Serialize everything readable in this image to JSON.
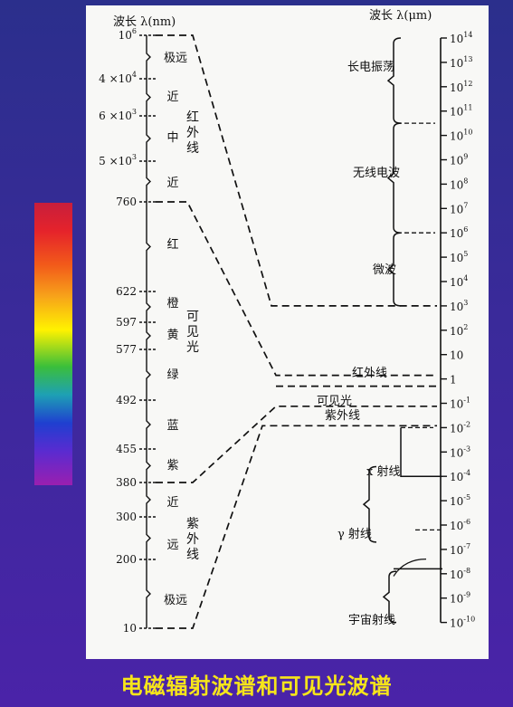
{
  "caption": "电磁辐射波谱和可见光波谱",
  "left_axis": {
    "title": "波长 λ(nm)",
    "ticks": [
      {
        "label": "10",
        "sup": "6"
      },
      {
        "label": "4 ×10",
        "sup": "4"
      },
      {
        "label": "6 ×10",
        "sup": "3"
      },
      {
        "label": "5 ×10",
        "sup": "3"
      },
      {
        "label": "760",
        "sup": ""
      },
      {
        "label": "622",
        "sup": ""
      },
      {
        "label": "597",
        "sup": ""
      },
      {
        "label": "577",
        "sup": ""
      },
      {
        "label": "492",
        "sup": ""
      },
      {
        "label": "455",
        "sup": ""
      },
      {
        "label": "380",
        "sup": ""
      },
      {
        "label": "300",
        "sup": ""
      },
      {
        "label": "200",
        "sup": ""
      },
      {
        "label": "10",
        "sup": ""
      }
    ],
    "region_labels": [
      "极远",
      "近",
      "中",
      "近",
      "红",
      "橙",
      "黄",
      "绿",
      "蓝",
      "紫",
      "近",
      "远",
      "极远"
    ],
    "group_labels": [
      "红外线",
      "可见光",
      "紫外线"
    ]
  },
  "right_axis": {
    "title": "波长 λ(μm)",
    "ticks": [
      {
        "base": "10",
        "sup": "14"
      },
      {
        "base": "10",
        "sup": "13"
      },
      {
        "base": "10",
        "sup": "12"
      },
      {
        "base": "10",
        "sup": "11"
      },
      {
        "base": "10",
        "sup": "10"
      },
      {
        "base": "10",
        "sup": "9"
      },
      {
        "base": "10",
        "sup": "8"
      },
      {
        "base": "10",
        "sup": "7"
      },
      {
        "base": "10",
        "sup": "6"
      },
      {
        "base": "10",
        "sup": "5"
      },
      {
        "base": "10",
        "sup": "4"
      },
      {
        "base": "10",
        "sup": "3"
      },
      {
        "base": "10",
        "sup": "2"
      },
      {
        "base": "10",
        "sup": ""
      },
      {
        "base": "1",
        "sup": ""
      },
      {
        "base": "10",
        "sup": "-1"
      },
      {
        "base": "10",
        "sup": "-2"
      },
      {
        "base": "10",
        "sup": "-3"
      },
      {
        "base": "10",
        "sup": "-4"
      },
      {
        "base": "10",
        "sup": "-5"
      },
      {
        "base": "10",
        "sup": "-6"
      },
      {
        "base": "10",
        "sup": "-7"
      },
      {
        "base": "10",
        "sup": "-8"
      },
      {
        "base": "10",
        "sup": "-9"
      },
      {
        "base": "10",
        "sup": "-10"
      }
    ],
    "band_labels": [
      "长电振荡",
      "无线电波",
      "微波",
      "红外线",
      "可见光",
      "紫外线",
      "x 射线",
      "γ 射线",
      "宇宙射线"
    ]
  }
}
